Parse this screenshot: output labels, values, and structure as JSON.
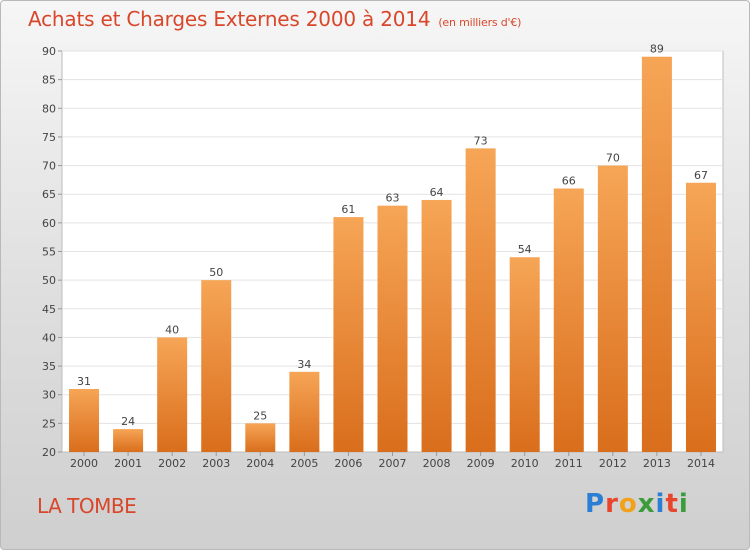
{
  "header": {
    "title": "Achats et Charges Externes 2000 à 2014",
    "unit": "(en milliers d'€)"
  },
  "footer": {
    "commune": "LA TOMBE",
    "logo_text": "Proxiti",
    "logo_colors": [
      "#2a7fd4",
      "#e8452c",
      "#f2a21a",
      "#3a9c3a",
      "#2a7fd4",
      "#e8452c",
      "#3a9c3a"
    ]
  },
  "chart_data": {
    "type": "bar",
    "title": "Achats et Charges Externes 2000 à 2014",
    "subtitle": "(en milliers d'€)",
    "categories": [
      "2000",
      "2001",
      "2002",
      "2003",
      "2004",
      "2005",
      "2006",
      "2007",
      "2008",
      "2009",
      "2010",
      "2011",
      "2012",
      "2013",
      "2014"
    ],
    "values": [
      31,
      24,
      40,
      50,
      25,
      34,
      61,
      63,
      64,
      73,
      54,
      66,
      70,
      89,
      67
    ],
    "ylim": [
      20,
      90
    ],
    "yticks": [
      20,
      25,
      30,
      35,
      40,
      45,
      50,
      55,
      60,
      65,
      70,
      75,
      80,
      85,
      90
    ],
    "grid": true,
    "bar_color_top": "#f6a556",
    "bar_color_bottom": "#d96e1c"
  }
}
